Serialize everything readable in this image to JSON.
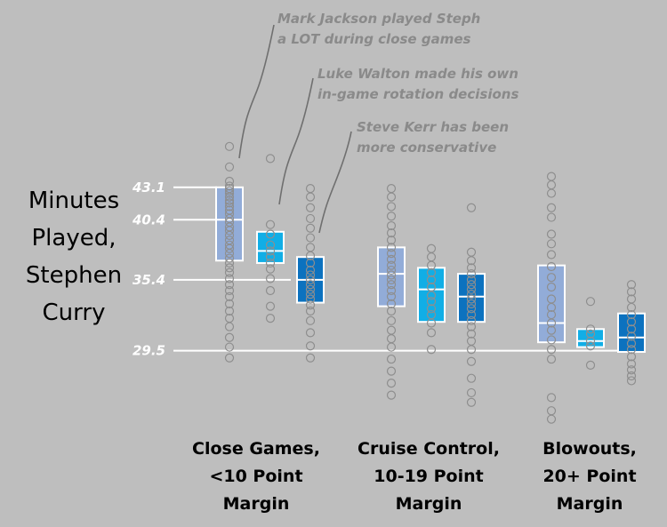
{
  "chart_data": {
    "type": "box",
    "title": "Minutes Played, Stephen Curry",
    "title_lines": [
      "Minutes",
      "Played,",
      "Stephen",
      "Curry"
    ],
    "ylabel": "Minutes Played, Stephen Curry",
    "ylim": [
      22,
      51
    ],
    "reference_lines": [
      {
        "value": 43.1,
        "label": "43.1"
      },
      {
        "value": 40.4,
        "label": "40.4"
      },
      {
        "value": 35.4,
        "label": "35.4"
      },
      {
        "value": 29.5,
        "label": "29.5"
      }
    ],
    "coaches": [
      {
        "name": "Mark Jackson",
        "color": "#92acd8"
      },
      {
        "name": "Luke Walton",
        "color": "#11aee6"
      },
      {
        "name": "Steve Kerr",
        "color": "#0c72bf"
      }
    ],
    "groups": [
      {
        "label_lines": [
          "Close Games,",
          "<10 Point",
          "Margin"
        ],
        "boxes": [
          {
            "coach": "Mark Jackson",
            "q1": 37.0,
            "median": 40.4,
            "q3": 43.1,
            "points": [
              46.5,
              44.8,
              43.6,
              43.2,
              43.0,
              42.8,
              42.6,
              42.3,
              42.0,
              41.8,
              41.5,
              41.2,
              40.9,
              40.5,
              40.2,
              39.8,
              39.5,
              39.1,
              38.7,
              38.3,
              38.0,
              37.6,
              37.2,
              36.8,
              36.4,
              36.0,
              35.5,
              35.0,
              34.5,
              34.0,
              33.4,
              32.8,
              32.2,
              31.5,
              30.6,
              29.8,
              28.9
            ]
          },
          {
            "coach": "Luke Walton",
            "q1": 36.8,
            "median": 37.8,
            "q3": 39.4,
            "points": [
              45.5,
              40.0,
              39.2,
              38.3,
              37.8,
              37.3,
              36.8,
              36.3,
              35.5,
              34.5,
              33.2,
              32.2
            ]
          },
          {
            "coach": "Steve Kerr",
            "q1": 33.5,
            "median": 35.4,
            "q3": 37.3,
            "points": [
              43.0,
              42.3,
              41.4,
              40.5,
              39.7,
              38.9,
              38.1,
              37.4,
              36.8,
              36.2,
              35.8,
              35.4,
              35.0,
              34.6,
              34.2,
              33.8,
              33.3,
              32.8,
              32.0,
              31.0,
              29.9,
              28.9
            ]
          }
        ]
      },
      {
        "label_lines": [
          "Cruise Control,",
          "10-19 Point",
          "Margin"
        ],
        "boxes": [
          {
            "coach": "Mark Jackson",
            "q1": 33.2,
            "median": 35.9,
            "q3": 38.1,
            "points": [
              43.0,
              42.3,
              41.5,
              40.7,
              39.9,
              39.3,
              38.7,
              38.1,
              37.6,
              37.1,
              36.6,
              36.2,
              35.8,
              35.4,
              35.0,
              34.5,
              34.0,
              33.4,
              32.8,
              32.0,
              31.2,
              30.5,
              29.8,
              28.8,
              27.8,
              26.8,
              25.8
            ]
          },
          {
            "coach": "Luke Walton",
            "q1": 31.9,
            "median": 34.6,
            "q3": 36.4,
            "points": [
              38.0,
              37.3,
              36.6,
              36.0,
              35.4,
              34.8,
              34.1,
              33.6,
              33.0,
              32.5,
              31.8,
              31.0,
              29.6
            ]
          },
          {
            "coach": "Steve Kerr",
            "q1": 31.9,
            "median": 34.0,
            "q3": 35.9,
            "points": [
              41.4,
              37.7,
              37.0,
              36.4,
              35.9,
              35.4,
              35.0,
              34.6,
              34.2,
              33.8,
              33.4,
              33.0,
              32.5,
              32.0,
              31.5,
              30.9,
              30.3,
              29.6,
              28.6,
              27.2,
              26.0,
              25.2
            ]
          }
        ]
      },
      {
        "label_lines": [
          "Blowouts,",
          "20+ Point",
          "Margin"
        ],
        "boxes": [
          {
            "coach": "Mark Jackson",
            "q1": 30.2,
            "median": 31.8,
            "q3": 36.6,
            "points": [
              44.0,
              43.3,
              42.6,
              41.4,
              40.6,
              39.2,
              38.4,
              37.5,
              36.5,
              35.6,
              34.8,
              33.8,
              33.1,
              32.5,
              31.8,
              31.2,
              30.4,
              29.6,
              28.8,
              25.6,
              24.5,
              23.8
            ]
          },
          {
            "coach": "Luke Walton",
            "q1": 29.8,
            "median": 30.3,
            "q3": 31.3,
            "points": [
              33.6,
              31.3,
              30.9,
              30.3,
              29.9,
              28.3
            ]
          },
          {
            "coach": "Steve Kerr",
            "q1": 29.4,
            "median": 30.6,
            "q3": 32.6,
            "points": [
              35.0,
              34.4,
              33.8,
              33.1,
              32.5,
              31.9,
              31.3,
              30.7,
              30.1,
              29.6,
              29.0,
              28.4,
              27.9,
              27.4,
              27.0
            ]
          }
        ]
      }
    ],
    "annotations": [
      {
        "coach": "Mark Jackson",
        "lines": [
          "Mark Jackson played Steph",
          "a LOT during close games"
        ]
      },
      {
        "coach": "Luke Walton",
        "lines": [
          "Luke Walton made his own",
          "in-game rotation decisions"
        ]
      },
      {
        "coach": "Steve Kerr",
        "lines": [
          "Steve Kerr has been",
          "more conservative"
        ]
      }
    ]
  }
}
